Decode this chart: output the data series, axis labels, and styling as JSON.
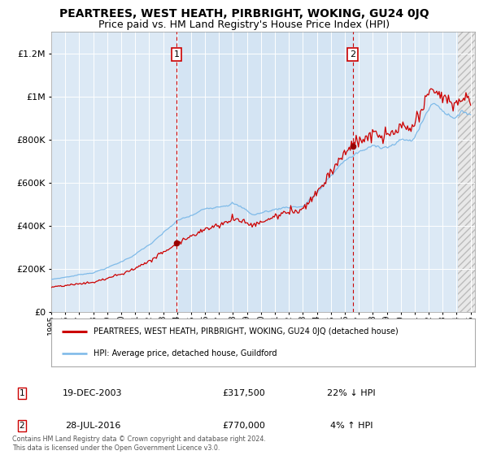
{
  "title": "PEARTREES, WEST HEATH, PIRBRIGHT, WOKING, GU24 0JQ",
  "subtitle": "Price paid vs. HM Land Registry's House Price Index (HPI)",
  "ylim": [
    0,
    1300000
  ],
  "yticks": [
    0,
    200000,
    400000,
    600000,
    800000,
    1000000,
    1200000
  ],
  "ytick_labels": [
    "£0",
    "£200K",
    "£400K",
    "£600K",
    "£800K",
    "£1M",
    "£1.2M"
  ],
  "xlim_start": 1995.0,
  "xlim_end": 2025.3,
  "xtick_years": [
    1995,
    1996,
    1997,
    1998,
    1999,
    2000,
    2001,
    2002,
    2003,
    2004,
    2005,
    2006,
    2007,
    2008,
    2009,
    2010,
    2011,
    2012,
    2013,
    2014,
    2015,
    2016,
    2017,
    2018,
    2019,
    2020,
    2021,
    2022,
    2023,
    2024,
    2025
  ],
  "background_color": "#ffffff",
  "plot_bg_color": "#dce9f5",
  "grid_color": "#ffffff",
  "hpi_line_color": "#7ab8e8",
  "price_line_color": "#cc0000",
  "sale1_x": 2003.97,
  "sale1_y": 317500,
  "sale1_label": "1",
  "sale2_x": 2016.57,
  "sale2_y": 770000,
  "sale2_label": "2",
  "sale1_date": "19-DEC-2003",
  "sale1_price": "£317,500",
  "sale1_hpi": "22% ↓ HPI",
  "sale2_date": "28-JUL-2016",
  "sale2_price": "£770,000",
  "sale2_hpi": "4% ↑ HPI",
  "legend1_text": "PEARTREES, WEST HEATH, PIRBRIGHT, WOKING, GU24 0JQ (detached house)",
  "legend2_text": "HPI: Average price, detached house, Guildford",
  "footer_text": "Contains HM Land Registry data © Crown copyright and database right 2024.\nThis data is licensed under the Open Government Licence v3.0.",
  "title_fontsize": 10,
  "subtitle_fontsize": 9
}
